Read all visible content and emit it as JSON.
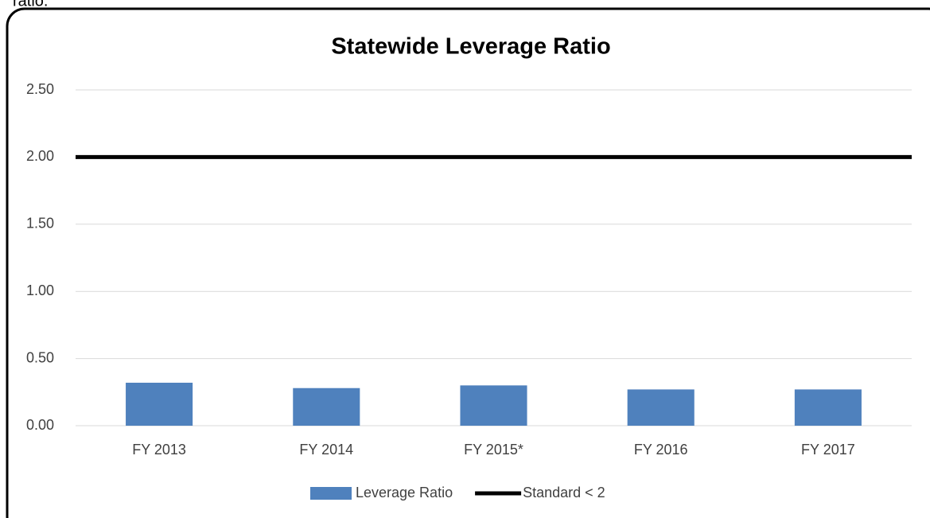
{
  "chart_data": {
    "type": "bar",
    "title": "Statewide Leverage Ratio",
    "annotations": [
      "ratio."
    ],
    "categories": [
      "FY 2013",
      "FY 2014",
      "FY 2015*",
      "FY 2016",
      "FY 2017"
    ],
    "series": [
      {
        "name": "Leverage Ratio",
        "type": "bar",
        "color": "#4f81bd",
        "values": [
          0.32,
          0.28,
          0.3,
          0.27,
          0.27
        ]
      },
      {
        "name": "Standard < 2",
        "type": "line",
        "color": "#000000",
        "values": [
          2,
          2,
          2,
          2,
          2
        ]
      }
    ],
    "ylim": [
      0,
      2.5
    ],
    "yticks": [
      {
        "value": 0,
        "label": "0.00"
      },
      {
        "value": 0.5,
        "label": "0.50"
      },
      {
        "value": 1,
        "label": "1.00"
      },
      {
        "value": 1.5,
        "label": "1.50"
      },
      {
        "value": 2,
        "label": "2.00"
      },
      {
        "value": 2.5,
        "label": "2.50"
      }
    ],
    "grid": true,
    "legend": "bottom"
  }
}
